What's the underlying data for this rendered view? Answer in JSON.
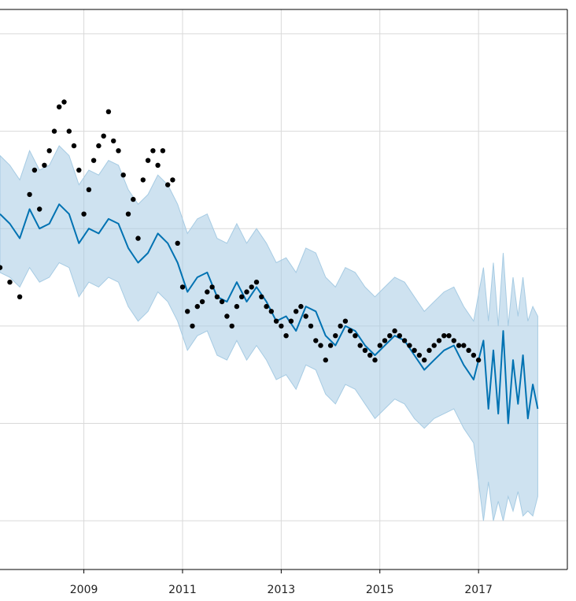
{
  "chart_data": {
    "type": "line",
    "title": "",
    "xlabel": "",
    "ylabel": "",
    "grid": true,
    "x_ticks": [
      "2009",
      "2011",
      "2013",
      "2015",
      "2017"
    ],
    "xlim": [
      2007.3,
      2018.8
    ],
    "ylim": [
      0,
      11.5
    ],
    "colors": {
      "forecast": "#0072b2",
      "interval": "#a6cbe3",
      "observed": "#000000"
    },
    "series": [
      {
        "role": "forecast",
        "x": [
          2007.3,
          2007.5,
          2007.7,
          2007.9,
          2008.1,
          2008.3,
          2008.5,
          2008.7,
          2008.9,
          2009.1,
          2009.3,
          2009.5,
          2009.7,
          2009.9,
          2010.1,
          2010.3,
          2010.5,
          2010.7,
          2010.9,
          2011.1,
          2011.3,
          2011.5,
          2011.7,
          2011.9,
          2012.1,
          2012.3,
          2012.5,
          2012.7,
          2012.9,
          2013.1,
          2013.3,
          2013.5,
          2013.7,
          2013.9,
          2014.1,
          2014.3,
          2014.5,
          2014.7,
          2014.9,
          2015.1,
          2015.3,
          2015.5,
          2015.7,
          2015.9,
          2016.1,
          2016.3,
          2016.5,
          2016.7,
          2016.9,
          2017.1,
          2017.2,
          2017.3,
          2017.4,
          2017.5,
          2017.6,
          2017.7,
          2017.8,
          2017.9,
          2018.0,
          2018.1,
          2018.2
        ],
        "y": [
          7.3,
          7.1,
          6.8,
          7.4,
          7.0,
          7.1,
          7.5,
          7.3,
          6.7,
          7.0,
          6.9,
          7.2,
          7.1,
          6.6,
          6.3,
          6.5,
          6.9,
          6.7,
          6.3,
          5.7,
          6.0,
          6.1,
          5.6,
          5.5,
          5.9,
          5.5,
          5.8,
          5.5,
          5.1,
          5.2,
          4.9,
          5.4,
          5.3,
          4.8,
          4.6,
          5.0,
          4.9,
          4.6,
          4.4,
          4.6,
          4.8,
          4.7,
          4.4,
          4.1,
          4.3,
          4.5,
          4.6,
          4.2,
          3.9,
          4.7,
          3.3,
          4.5,
          3.2,
          4.9,
          3.0,
          4.3,
          3.4,
          4.4,
          3.1,
          3.8,
          3.3
        ]
      },
      {
        "role": "forecast_lower",
        "x": [
          2007.3,
          2007.5,
          2007.7,
          2007.9,
          2008.1,
          2008.3,
          2008.5,
          2008.7,
          2008.9,
          2009.1,
          2009.3,
          2009.5,
          2009.7,
          2009.9,
          2010.1,
          2010.3,
          2010.5,
          2010.7,
          2010.9,
          2011.1,
          2011.3,
          2011.5,
          2011.7,
          2011.9,
          2012.1,
          2012.3,
          2012.5,
          2012.7,
          2012.9,
          2013.1,
          2013.3,
          2013.5,
          2013.7,
          2013.9,
          2014.1,
          2014.3,
          2014.5,
          2014.7,
          2014.9,
          2015.1,
          2015.3,
          2015.5,
          2015.7,
          2015.9,
          2016.1,
          2016.3,
          2016.5,
          2016.7,
          2016.9,
          2017.1,
          2017.2,
          2017.3,
          2017.4,
          2017.5,
          2017.6,
          2017.7,
          2017.8,
          2017.9,
          2018.0,
          2018.1,
          2018.2
        ],
        "y": [
          6.1,
          6.0,
          5.8,
          6.2,
          5.9,
          6.0,
          6.3,
          6.2,
          5.6,
          5.9,
          5.8,
          6.0,
          5.9,
          5.4,
          5.1,
          5.3,
          5.7,
          5.5,
          5.1,
          4.5,
          4.8,
          4.9,
          4.4,
          4.3,
          4.7,
          4.3,
          4.6,
          4.3,
          3.9,
          4.0,
          3.7,
          4.2,
          4.1,
          3.6,
          3.4,
          3.8,
          3.7,
          3.4,
          3.1,
          3.3,
          3.5,
          3.4,
          3.1,
          2.9,
          3.1,
          3.2,
          3.3,
          2.9,
          2.6,
          1.0,
          1.8,
          1.0,
          1.4,
          1.0,
          1.5,
          1.2,
          1.6,
          1.1,
          1.2,
          1.1,
          1.5
        ]
      },
      {
        "role": "forecast_upper",
        "x": [
          2007.3,
          2007.5,
          2007.7,
          2007.9,
          2008.1,
          2008.3,
          2008.5,
          2008.7,
          2008.9,
          2009.1,
          2009.3,
          2009.5,
          2009.7,
          2009.9,
          2010.1,
          2010.3,
          2010.5,
          2010.7,
          2010.9,
          2011.1,
          2011.3,
          2011.5,
          2011.7,
          2011.9,
          2012.1,
          2012.3,
          2012.5,
          2012.7,
          2012.9,
          2013.1,
          2013.3,
          2013.5,
          2013.7,
          2013.9,
          2014.1,
          2014.3,
          2014.5,
          2014.7,
          2014.9,
          2015.1,
          2015.3,
          2015.5,
          2015.7,
          2015.9,
          2016.1,
          2016.3,
          2016.5,
          2016.7,
          2016.9,
          2017.1,
          2017.2,
          2017.3,
          2017.4,
          2017.5,
          2017.6,
          2017.7,
          2017.8,
          2017.9,
          2018.0,
          2018.1,
          2018.2
        ],
        "y": [
          8.5,
          8.3,
          8.0,
          8.6,
          8.2,
          8.3,
          8.7,
          8.5,
          7.9,
          8.2,
          8.1,
          8.4,
          8.3,
          7.8,
          7.5,
          7.7,
          8.1,
          7.9,
          7.5,
          6.9,
          7.2,
          7.3,
          6.8,
          6.7,
          7.1,
          6.7,
          7.0,
          6.7,
          6.3,
          6.4,
          6.1,
          6.6,
          6.5,
          6.0,
          5.8,
          6.2,
          6.1,
          5.8,
          5.6,
          5.8,
          6.0,
          5.9,
          5.6,
          5.3,
          5.5,
          5.7,
          5.8,
          5.4,
          5.1,
          6.2,
          5.1,
          6.3,
          5.0,
          6.5,
          5.0,
          6.0,
          5.2,
          6.0,
          5.1,
          5.4,
          5.2
        ]
      },
      {
        "role": "observed",
        "x": [
          2007.3,
          2007.5,
          2007.7,
          2007.9,
          2008.0,
          2008.1,
          2008.2,
          2008.3,
          2008.4,
          2008.5,
          2008.6,
          2008.7,
          2008.8,
          2008.9,
          2009.0,
          2009.1,
          2009.2,
          2009.3,
          2009.4,
          2009.5,
          2009.6,
          2009.7,
          2009.8,
          2009.9,
          2010.0,
          2010.1,
          2010.2,
          2010.3,
          2010.4,
          2010.5,
          2010.6,
          2010.7,
          2010.8,
          2010.9,
          2011.0,
          2011.1,
          2011.2,
          2011.3,
          2011.4,
          2011.5,
          2011.6,
          2011.7,
          2011.8,
          2011.9,
          2012.0,
          2012.1,
          2012.2,
          2012.3,
          2012.4,
          2012.5,
          2012.6,
          2012.7,
          2012.8,
          2012.9,
          2013.0,
          2013.1,
          2013.2,
          2013.3,
          2013.4,
          2013.5,
          2013.6,
          2013.7,
          2013.8,
          2013.9,
          2014.0,
          2014.1,
          2014.2,
          2014.3,
          2014.4,
          2014.5,
          2014.6,
          2014.7,
          2014.8,
          2014.9,
          2015.0,
          2015.1,
          2015.2,
          2015.3,
          2015.4,
          2015.5,
          2015.6,
          2015.7,
          2015.8,
          2015.9,
          2016.0,
          2016.1,
          2016.2,
          2016.3,
          2016.4,
          2016.5,
          2016.6,
          2016.7,
          2016.8,
          2016.9,
          2017.0
        ],
        "y": [
          6.2,
          5.9,
          5.6,
          7.7,
          8.2,
          7.4,
          8.3,
          8.6,
          9.0,
          9.5,
          9.6,
          9.0,
          8.7,
          8.2,
          7.3,
          7.8,
          8.4,
          8.7,
          8.9,
          9.4,
          8.8,
          8.6,
          8.1,
          7.3,
          7.6,
          6.8,
          8.0,
          8.4,
          8.6,
          8.3,
          8.6,
          7.9,
          8.0,
          6.7,
          5.8,
          5.3,
          5.0,
          5.4,
          5.5,
          5.7,
          5.8,
          5.6,
          5.5,
          5.2,
          5.0,
          5.4,
          5.6,
          5.7,
          5.8,
          5.9,
          5.6,
          5.4,
          5.3,
          5.1,
          5.0,
          4.8,
          5.1,
          5.3,
          5.4,
          5.2,
          5.0,
          4.7,
          4.6,
          4.3,
          4.6,
          4.8,
          5.0,
          5.1,
          4.9,
          4.8,
          4.6,
          4.5,
          4.4,
          4.3,
          4.6,
          4.7,
          4.8,
          4.9,
          4.8,
          4.7,
          4.6,
          4.5,
          4.4,
          4.3,
          4.5,
          4.6,
          4.7,
          4.8,
          4.8,
          4.7,
          4.6,
          4.6,
          4.5,
          4.4,
          4.3
        ]
      }
    ]
  }
}
